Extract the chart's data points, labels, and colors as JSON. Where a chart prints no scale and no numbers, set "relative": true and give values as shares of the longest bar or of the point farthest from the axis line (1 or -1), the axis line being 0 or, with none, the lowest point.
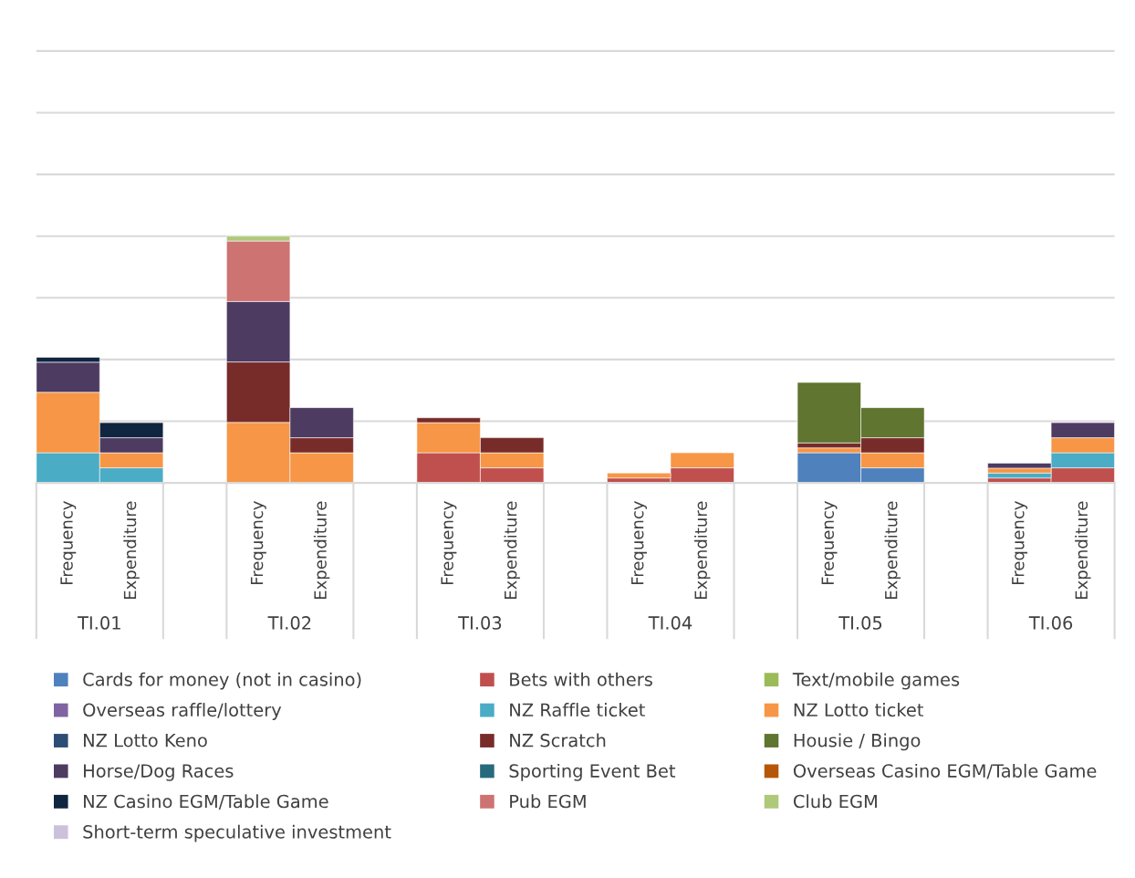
{
  "chart_data": {
    "type": "bar",
    "stacked": true,
    "relative": true,
    "grid": "y",
    "legend": "bottom",
    "categories": [
      "Frequency",
      "Expenditure",
      null,
      "Frequency",
      "Expenditure",
      null,
      "Frequency",
      "Expenditure",
      null,
      "Frequency",
      "Expenditure",
      null,
      "Frequency",
      "Expenditure",
      null,
      "Frequency",
      "Expenditure"
    ],
    "annotations": [
      "TI.01",
      "TI.02",
      "TI.03",
      "TI.04",
      "TI.05",
      "TI.06"
    ],
    "series": [
      {
        "name": "Cards for money (not in casino)",
        "color": "#4f81bd",
        "values": [
          null,
          null,
          null,
          null,
          null,
          null,
          null,
          null,
          null,
          null,
          null,
          null,
          0.122,
          0.061,
          null,
          null,
          null
        ]
      },
      {
        "name": "Bets with others",
        "color": "#c0504d",
        "values": [
          null,
          null,
          null,
          null,
          null,
          null,
          0.122,
          0.061,
          null,
          0.02,
          0.061,
          null,
          null,
          null,
          null,
          0.02,
          0.061
        ]
      },
      {
        "name": "Text/mobile games",
        "color": "#9bbb59",
        "values": [
          null,
          null,
          null,
          null,
          null,
          null,
          null,
          null,
          null,
          null,
          null,
          null,
          null,
          null,
          null,
          null,
          null
        ]
      },
      {
        "name": "Overseas raffle/lottery",
        "color": "#8064a2",
        "values": [
          null,
          null,
          null,
          null,
          null,
          null,
          null,
          null,
          null,
          null,
          null,
          null,
          null,
          null,
          null,
          null,
          null
        ]
      },
      {
        "name": "NZ Raffle ticket",
        "color": "#4bacc6",
        "values": [
          0.122,
          0.061,
          null,
          null,
          null,
          null,
          null,
          null,
          null,
          null,
          null,
          null,
          null,
          null,
          null,
          0.02,
          0.061
        ]
      },
      {
        "name": "NZ Lotto ticket",
        "color": "#f79646",
        "values": [
          0.245,
          0.061,
          null,
          0.245,
          0.122,
          null,
          0.122,
          0.061,
          null,
          0.02,
          0.061,
          null,
          0.02,
          0.061,
          null,
          0.02,
          0.061
        ]
      },
      {
        "name": "NZ Lotto Keno",
        "color": "#2c4d75",
        "values": [
          null,
          null,
          null,
          null,
          null,
          null,
          null,
          null,
          null,
          null,
          null,
          null,
          null,
          null,
          null,
          null,
          null
        ]
      },
      {
        "name": "NZ Scratch",
        "color": "#772c2a",
        "values": [
          null,
          null,
          null,
          0.245,
          0.061,
          null,
          0.02,
          0.061,
          null,
          null,
          null,
          null,
          0.02,
          0.061,
          null,
          null,
          null
        ]
      },
      {
        "name": "Housie / Bingo",
        "color": "#5f7530",
        "values": [
          null,
          null,
          null,
          null,
          null,
          null,
          null,
          null,
          null,
          null,
          null,
          null,
          0.245,
          0.122,
          null,
          null,
          null
        ]
      },
      {
        "name": "Horse/Dog Races",
        "color": "#4d3b62",
        "values": [
          0.122,
          0.061,
          null,
          0.245,
          0.122,
          null,
          null,
          null,
          null,
          null,
          null,
          null,
          null,
          null,
          null,
          0.02,
          0.061
        ]
      },
      {
        "name": "Sporting Event Bet",
        "color": "#276a7c",
        "values": [
          null,
          null,
          null,
          null,
          null,
          null,
          null,
          null,
          null,
          null,
          null,
          null,
          null,
          null,
          null,
          null,
          null
        ]
      },
      {
        "name": "Overseas Casino EGM/Table Game",
        "color": "#b65708",
        "values": [
          null,
          null,
          null,
          null,
          null,
          null,
          null,
          null,
          null,
          null,
          null,
          null,
          null,
          null,
          null,
          null,
          null
        ]
      },
      {
        "name": "NZ Casino EGM/Table Game",
        "color": "#10253f",
        "values": [
          0.02,
          0.061,
          null,
          null,
          null,
          null,
          null,
          null,
          null,
          null,
          null,
          null,
          null,
          null,
          null,
          null,
          null
        ]
      },
      {
        "name": "Pub EGM",
        "color": "#cd7371",
        "values": [
          null,
          null,
          null,
          0.245,
          null,
          null,
          null,
          null,
          null,
          null,
          null,
          null,
          null,
          null,
          null,
          null,
          null
        ]
      },
      {
        "name": "Club EGM",
        "color": "#afc97a",
        "values": [
          null,
          null,
          null,
          0.02,
          null,
          null,
          null,
          null,
          null,
          null,
          null,
          null,
          null,
          null,
          null,
          null,
          null
        ]
      },
      {
        "name": "Short-term speculative investment",
        "color": "#ccc1da",
        "values": [
          null,
          null,
          null,
          null,
          null,
          null,
          null,
          null,
          null,
          null,
          null,
          null,
          null,
          null,
          null,
          null,
          null
        ]
      }
    ]
  }
}
